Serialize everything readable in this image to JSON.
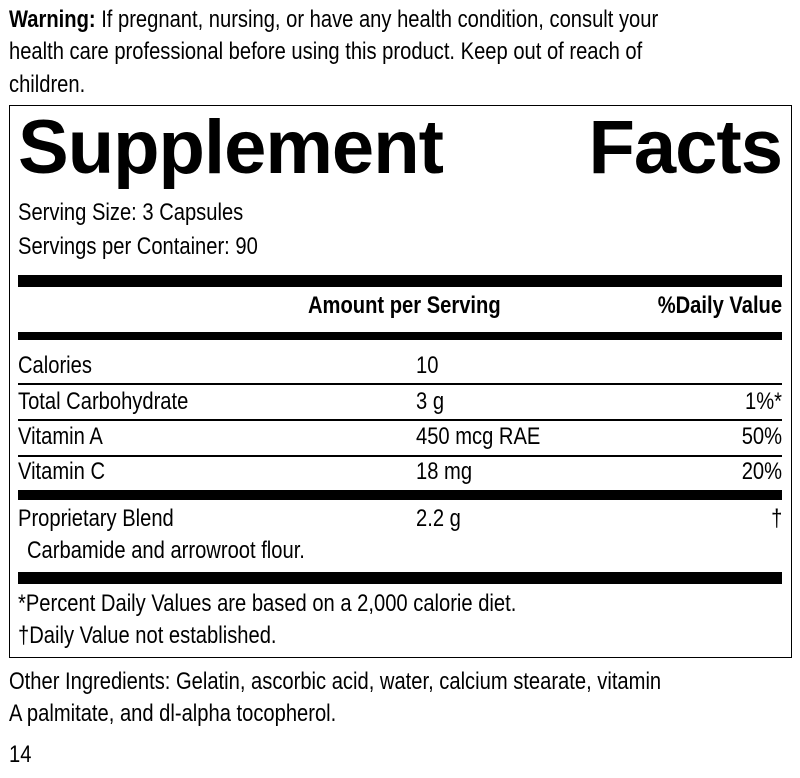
{
  "warning": {
    "label": "Warning:",
    "lines": [
      "If pregnant, nursing, or have any health condition, consult your",
      "health care professional before using this product. Keep out of reach of",
      "children."
    ]
  },
  "facts": {
    "title_word1": "Supplement",
    "title_word2": "Facts",
    "serving_size": "Serving Size: 3 Capsules",
    "servings_per_container": "Servings per Container: 90",
    "header": {
      "amount": "Amount per Serving",
      "dv": "%Daily Value"
    },
    "rows": [
      {
        "name": "Calories",
        "amount": "10",
        "dv": ""
      },
      {
        "name": "Total Carbohydrate",
        "amount": "3 g",
        "dv": "1%*"
      },
      {
        "name": "Vitamin A",
        "amount": "450 mcg RAE",
        "dv": "50%"
      },
      {
        "name": "Vitamin C",
        "amount": "18 mg",
        "dv": "20%"
      }
    ],
    "blend": {
      "name": "Proprietary Blend",
      "amount": "2.2 g",
      "dv": "†",
      "ingredients": "Carbamide and arrowroot flour."
    },
    "footnotes": [
      "*Percent Daily Values are based on a 2,000 calorie diet.",
      "†Daily Value not established."
    ]
  },
  "other_ingredients": [
    "Other Ingredients: Gelatin, ascorbic acid, water, calcium stearate, vitamin",
    "A palmitate, and dl-alpha tocopherol."
  ],
  "page_number": "14"
}
